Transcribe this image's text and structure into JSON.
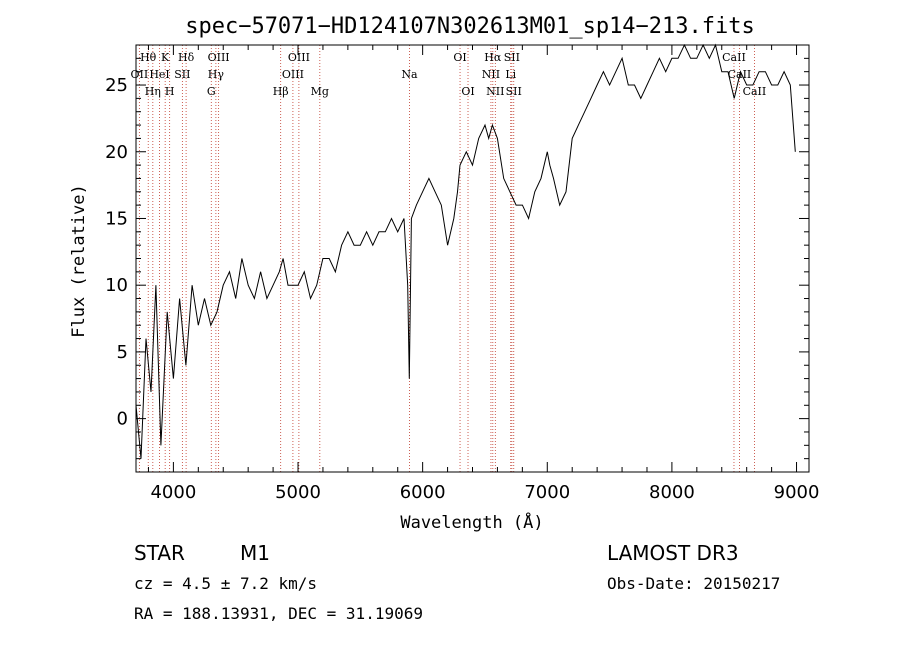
{
  "chart_data": {
    "type": "line",
    "title": "spec−57071−HD124107N302613M01_sp14−213.fits",
    "xlabel": "Wavelength (Å)",
    "ylabel": "Flux (relative)",
    "xlim": [
      3700,
      9100
    ],
    "ylim": [
      -4,
      28
    ],
    "xticks": [
      4000,
      5000,
      6000,
      7000,
      8000,
      9000
    ],
    "xtick_labels": [
      "4000",
      "5000",
      "6000",
      "7000",
      "8000",
      "9000"
    ],
    "yticks": [
      0,
      5,
      10,
      15,
      20,
      25
    ],
    "ytick_labels": [
      "0",
      "5",
      "10",
      "15",
      "20",
      "25"
    ],
    "series": [
      {
        "name": "spectrum",
        "x": [
          3700,
          3740,
          3780,
          3820,
          3860,
          3900,
          3950,
          4000,
          4050,
          4100,
          4150,
          4200,
          4250,
          4300,
          4350,
          4400,
          4450,
          4500,
          4550,
          4600,
          4650,
          4700,
          4750,
          4800,
          4850,
          4880,
          4920,
          4960,
          5000,
          5050,
          5100,
          5150,
          5200,
          5250,
          5300,
          5350,
          5400,
          5450,
          5500,
          5550,
          5600,
          5650,
          5700,
          5750,
          5800,
          5850,
          5880,
          5893,
          5910,
          5950,
          6000,
          6050,
          6100,
          6150,
          6200,
          6250,
          6280,
          6300,
          6350,
          6400,
          6450,
          6500,
          6530,
          6560,
          6600,
          6650,
          6700,
          6750,
          6800,
          6850,
          6900,
          6950,
          7000,
          7020,
          7050,
          7100,
          7150,
          7200,
          7250,
          7300,
          7350,
          7400,
          7450,
          7500,
          7550,
          7600,
          7650,
          7700,
          7750,
          7800,
          7850,
          7900,
          7950,
          8000,
          8050,
          8100,
          8150,
          8200,
          8250,
          8300,
          8350,
          8400,
          8450,
          8500,
          8550,
          8600,
          8650,
          8700,
          8750,
          8800,
          8850,
          8900,
          8950,
          8990
        ],
        "y": [
          1,
          -3,
          6,
          2,
          10,
          -2,
          8,
          3,
          9,
          4,
          10,
          7,
          9,
          7,
          8,
          10,
          11,
          9,
          12,
          10,
          9,
          11,
          9,
          10,
          11,
          12,
          10,
          10,
          10,
          11,
          9,
          10,
          12,
          12,
          11,
          13,
          14,
          13,
          13,
          14,
          13,
          14,
          14,
          15,
          14,
          15,
          10,
          3,
          15,
          16,
          17,
          18,
          17,
          16,
          13,
          15,
          17,
          19,
          20,
          19,
          21,
          22,
          21,
          22,
          21,
          18,
          17,
          16,
          16,
          15,
          17,
          18,
          20,
          19,
          18,
          16,
          17,
          21,
          22,
          23,
          24,
          25,
          26,
          25,
          26,
          27,
          25,
          25,
          24,
          25,
          26,
          27,
          26,
          27,
          27,
          28,
          27,
          27,
          28,
          27,
          28,
          26,
          26,
          24,
          26,
          25,
          25,
          26,
          26,
          25,
          25,
          26,
          25,
          20
        ]
      }
    ],
    "line_markers": [
      {
        "wave": 3727,
        "label": "OII",
        "row": 1
      },
      {
        "wave": 3798,
        "label": "Hθ",
        "row": 0
      },
      {
        "wave": 3835,
        "label": "Hη",
        "row": 2
      },
      {
        "wave": 3889,
        "label": "HeI",
        "row": 1
      },
      {
        "wave": 3934,
        "label": "K",
        "row": 0
      },
      {
        "wave": 3970,
        "label": "H",
        "row": 2
      },
      {
        "wave": 4072,
        "label": "SII",
        "row": 1
      },
      {
        "wave": 4102,
        "label": "Hδ",
        "row": 0
      },
      {
        "wave": 4304,
        "label": "G",
        "row": 2
      },
      {
        "wave": 4341,
        "label": "Hγ",
        "row": 1
      },
      {
        "wave": 4363,
        "label": "OIII",
        "row": 0
      },
      {
        "wave": 4861,
        "label": "Hβ",
        "row": 2
      },
      {
        "wave": 4959,
        "label": "OIII",
        "row": 1
      },
      {
        "wave": 5007,
        "label": "OIII",
        "row": 0
      },
      {
        "wave": 5175,
        "label": "Mg",
        "row": 2
      },
      {
        "wave": 5894,
        "label": "Na",
        "row": 1
      },
      {
        "wave": 6300,
        "label": "OI",
        "row": 0
      },
      {
        "wave": 6364,
        "label": "OI",
        "row": 2
      },
      {
        "wave": 6548,
        "label": "NII",
        "row": 1
      },
      {
        "wave": 6563,
        "label": "Hα",
        "row": 0
      },
      {
        "wave": 6583,
        "label": "NII",
        "row": 2
      },
      {
        "wave": 6707,
        "label": "Li",
        "row": 1
      },
      {
        "wave": 6716,
        "label": "SII",
        "row": 0
      },
      {
        "wave": 6731,
        "label": "SII",
        "row": 2
      },
      {
        "wave": 8498,
        "label": "CaII",
        "row": 0
      },
      {
        "wave": 8542,
        "label": "CaII",
        "row": 1
      },
      {
        "wave": 8662,
        "label": "CaII",
        "row": 2
      }
    ]
  },
  "info": {
    "object_class": "STAR",
    "subclass": "M1",
    "survey": "LAMOST DR3",
    "cz": "cz = 4.5 ± 7.2 km/s",
    "obs_date": "Obs-Date: 20150217",
    "coords": "RA = 188.13931, DEC =  31.19069"
  },
  "colors": {
    "marker": "#c0392b",
    "line": "#000000"
  }
}
